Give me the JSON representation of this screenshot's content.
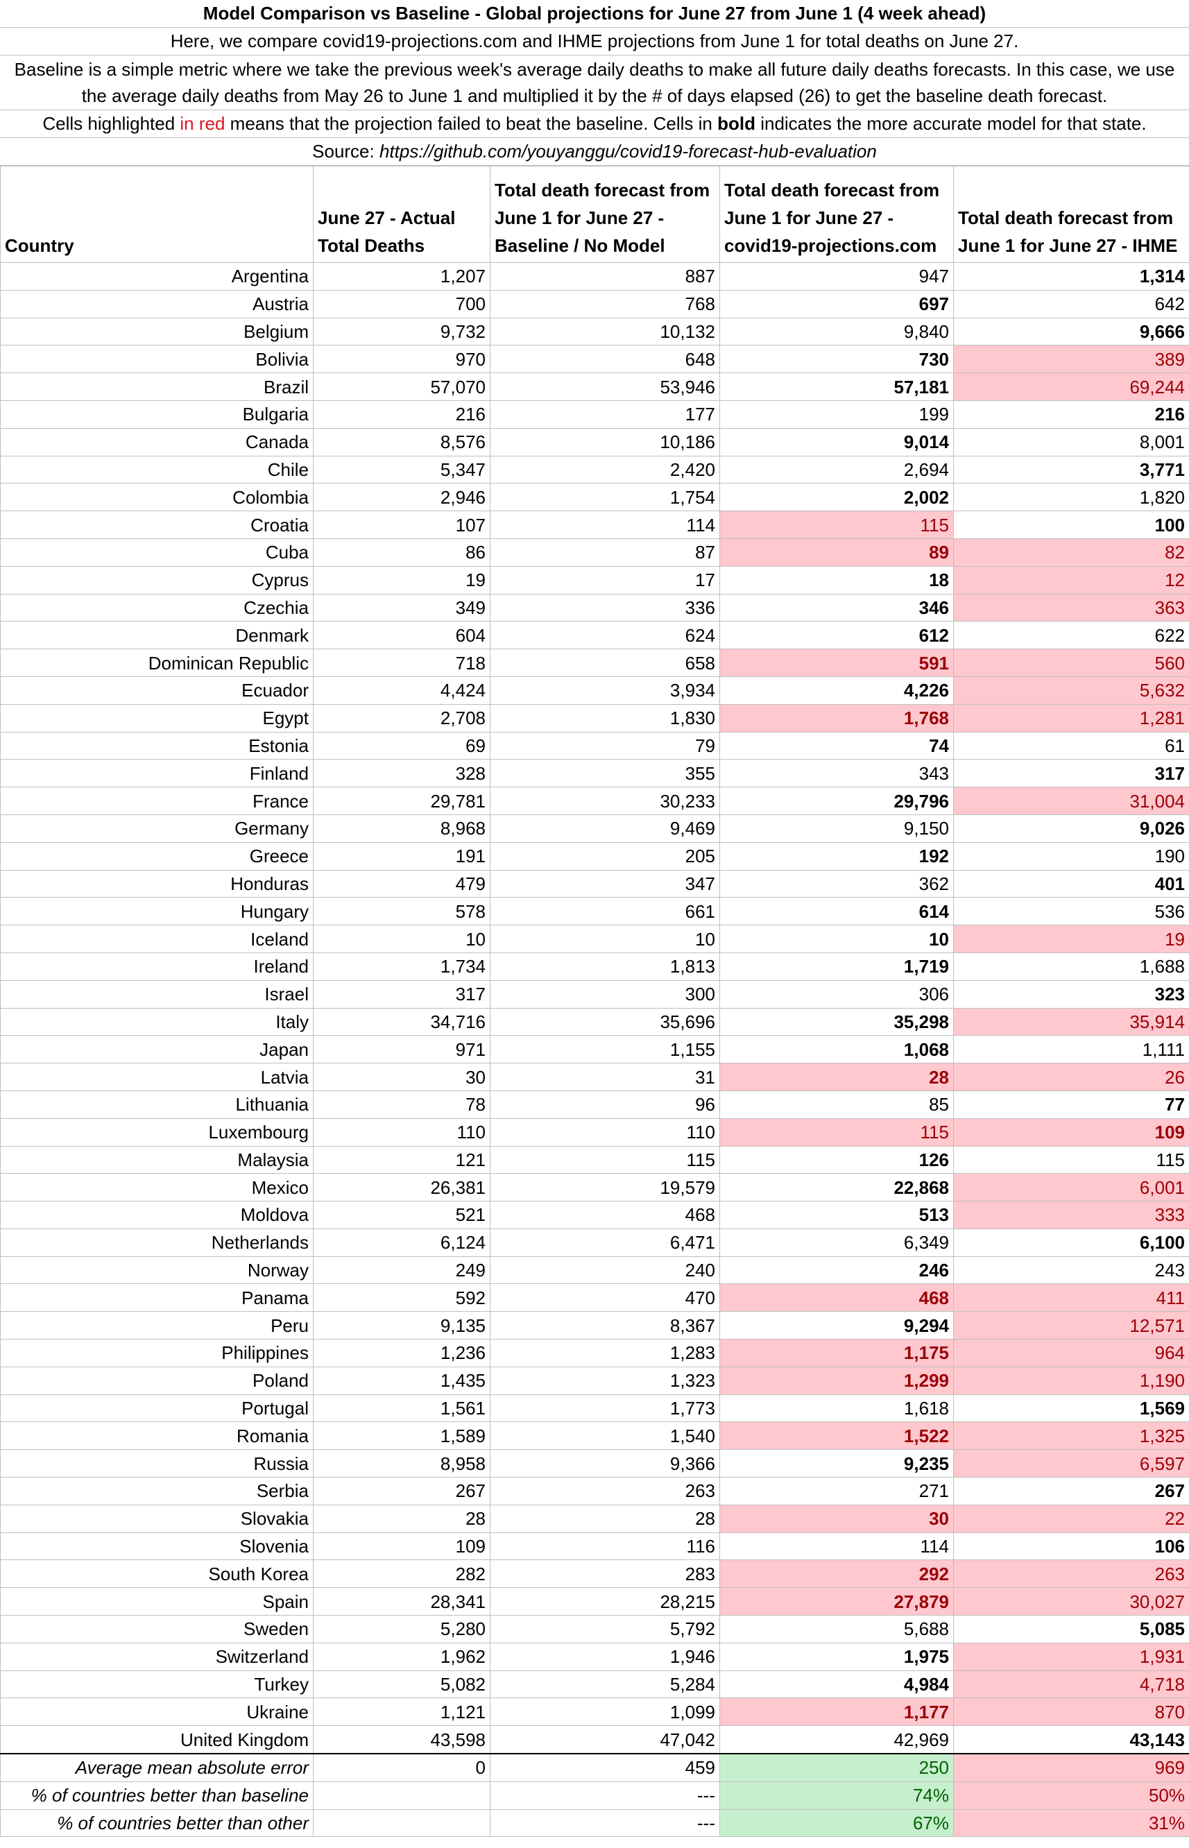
{
  "header": {
    "title": "Model Comparison vs Baseline - Global projections for June 27 from June 1 (4 week ahead)",
    "intro": "Here, we compare covid19-projections.com and IHME projections from June 1 for total deaths on June 27.",
    "baseline_desc": "Baseline is a simple metric where we take the previous week's average daily deaths to make all future daily deaths forecasts. In this case, we use the average daily deaths from May 26 to June 1 and multiplied it by the # of days elapsed (26) to get the baseline death forecast.",
    "legend_pre": "Cells highlighted ",
    "legend_red": "in red",
    "legend_mid": " means that the projection failed to beat the baseline. Cells in ",
    "legend_bold": "bold",
    "legend_post": " indicates the more accurate model for that state.",
    "source_label": "Source: ",
    "source_url": "https://github.com/youyanggu/covid19-forecast-hub-evaluation"
  },
  "columns": [
    "Country",
    "June 27 - Actual Total Deaths",
    "Total death forecast from June 1 for June 27 - Baseline / No Model",
    "Total death forecast from June 1 for June 27 - covid19-projections.com",
    "Total death forecast from June 1 for June 27 - IHME"
  ],
  "colors": {
    "bad_bg": "#ffc7ce",
    "bad_text": "#9c0006",
    "good_bg": "#c6efce",
    "good_text": "#006100"
  },
  "rows": [
    {
      "country": "Argentina",
      "actual": "1,207",
      "baseline": "887",
      "c19": "947",
      "ihme": "1,314",
      "c19_bold": false,
      "c19_red": false,
      "ihme_bold": true,
      "ihme_red": false
    },
    {
      "country": "Austria",
      "actual": "700",
      "baseline": "768",
      "c19": "697",
      "ihme": "642",
      "c19_bold": true,
      "c19_red": false,
      "ihme_bold": false,
      "ihme_red": false
    },
    {
      "country": "Belgium",
      "actual": "9,732",
      "baseline": "10,132",
      "c19": "9,840",
      "ihme": "9,666",
      "c19_bold": false,
      "c19_red": false,
      "ihme_bold": true,
      "ihme_red": false
    },
    {
      "country": "Bolivia",
      "actual": "970",
      "baseline": "648",
      "c19": "730",
      "ihme": "389",
      "c19_bold": true,
      "c19_red": false,
      "ihme_bold": false,
      "ihme_red": true
    },
    {
      "country": "Brazil",
      "actual": "57,070",
      "baseline": "53,946",
      "c19": "57,181",
      "ihme": "69,244",
      "c19_bold": true,
      "c19_red": false,
      "ihme_bold": false,
      "ihme_red": true
    },
    {
      "country": "Bulgaria",
      "actual": "216",
      "baseline": "177",
      "c19": "199",
      "ihme": "216",
      "c19_bold": false,
      "c19_red": false,
      "ihme_bold": true,
      "ihme_red": false
    },
    {
      "country": "Canada",
      "actual": "8,576",
      "baseline": "10,186",
      "c19": "9,014",
      "ihme": "8,001",
      "c19_bold": true,
      "c19_red": false,
      "ihme_bold": false,
      "ihme_red": false
    },
    {
      "country": "Chile",
      "actual": "5,347",
      "baseline": "2,420",
      "c19": "2,694",
      "ihme": "3,771",
      "c19_bold": false,
      "c19_red": false,
      "ihme_bold": true,
      "ihme_red": false
    },
    {
      "country": "Colombia",
      "actual": "2,946",
      "baseline": "1,754",
      "c19": "2,002",
      "ihme": "1,820",
      "c19_bold": true,
      "c19_red": false,
      "ihme_bold": false,
      "ihme_red": false
    },
    {
      "country": "Croatia",
      "actual": "107",
      "baseline": "114",
      "c19": "115",
      "ihme": "100",
      "c19_bold": false,
      "c19_red": true,
      "ihme_bold": true,
      "ihme_red": false
    },
    {
      "country": "Cuba",
      "actual": "86",
      "baseline": "87",
      "c19": "89",
      "ihme": "82",
      "c19_bold": true,
      "c19_red": true,
      "ihme_bold": false,
      "ihme_red": true
    },
    {
      "country": "Cyprus",
      "actual": "19",
      "baseline": "17",
      "c19": "18",
      "ihme": "12",
      "c19_bold": true,
      "c19_red": false,
      "ihme_bold": false,
      "ihme_red": true
    },
    {
      "country": "Czechia",
      "actual": "349",
      "baseline": "336",
      "c19": "346",
      "ihme": "363",
      "c19_bold": true,
      "c19_red": false,
      "ihme_bold": false,
      "ihme_red": true
    },
    {
      "country": "Denmark",
      "actual": "604",
      "baseline": "624",
      "c19": "612",
      "ihme": "622",
      "c19_bold": true,
      "c19_red": false,
      "ihme_bold": false,
      "ihme_red": false
    },
    {
      "country": "Dominican Republic",
      "actual": "718",
      "baseline": "658",
      "c19": "591",
      "ihme": "560",
      "c19_bold": true,
      "c19_red": true,
      "ihme_bold": false,
      "ihme_red": true
    },
    {
      "country": "Ecuador",
      "actual": "4,424",
      "baseline": "3,934",
      "c19": "4,226",
      "ihme": "5,632",
      "c19_bold": true,
      "c19_red": false,
      "ihme_bold": false,
      "ihme_red": true
    },
    {
      "country": "Egypt",
      "actual": "2,708",
      "baseline": "1,830",
      "c19": "1,768",
      "ihme": "1,281",
      "c19_bold": true,
      "c19_red": true,
      "ihme_bold": false,
      "ihme_red": true
    },
    {
      "country": "Estonia",
      "actual": "69",
      "baseline": "79",
      "c19": "74",
      "ihme": "61",
      "c19_bold": true,
      "c19_red": false,
      "ihme_bold": false,
      "ihme_red": false
    },
    {
      "country": "Finland",
      "actual": "328",
      "baseline": "355",
      "c19": "343",
      "ihme": "317",
      "c19_bold": false,
      "c19_red": false,
      "ihme_bold": true,
      "ihme_red": false
    },
    {
      "country": "France",
      "actual": "29,781",
      "baseline": "30,233",
      "c19": "29,796",
      "ihme": "31,004",
      "c19_bold": true,
      "c19_red": false,
      "ihme_bold": false,
      "ihme_red": true
    },
    {
      "country": "Germany",
      "actual": "8,968",
      "baseline": "9,469",
      "c19": "9,150",
      "ihme": "9,026",
      "c19_bold": false,
      "c19_red": false,
      "ihme_bold": true,
      "ihme_red": false
    },
    {
      "country": "Greece",
      "actual": "191",
      "baseline": "205",
      "c19": "192",
      "ihme": "190",
      "c19_bold": true,
      "c19_red": false,
      "ihme_bold": false,
      "ihme_red": false
    },
    {
      "country": "Honduras",
      "actual": "479",
      "baseline": "347",
      "c19": "362",
      "ihme": "401",
      "c19_bold": false,
      "c19_red": false,
      "ihme_bold": true,
      "ihme_red": false
    },
    {
      "country": "Hungary",
      "actual": "578",
      "baseline": "661",
      "c19": "614",
      "ihme": "536",
      "c19_bold": true,
      "c19_red": false,
      "ihme_bold": false,
      "ihme_red": false
    },
    {
      "country": "Iceland",
      "actual": "10",
      "baseline": "10",
      "c19": "10",
      "ihme": "19",
      "c19_bold": true,
      "c19_red": false,
      "ihme_bold": false,
      "ihme_red": true
    },
    {
      "country": "Ireland",
      "actual": "1,734",
      "baseline": "1,813",
      "c19": "1,719",
      "ihme": "1,688",
      "c19_bold": true,
      "c19_red": false,
      "ihme_bold": false,
      "ihme_red": false
    },
    {
      "country": "Israel",
      "actual": "317",
      "baseline": "300",
      "c19": "306",
      "ihme": "323",
      "c19_bold": false,
      "c19_red": false,
      "ihme_bold": true,
      "ihme_red": false
    },
    {
      "country": "Italy",
      "actual": "34,716",
      "baseline": "35,696",
      "c19": "35,298",
      "ihme": "35,914",
      "c19_bold": true,
      "c19_red": false,
      "ihme_bold": false,
      "ihme_red": true
    },
    {
      "country": "Japan",
      "actual": "971",
      "baseline": "1,155",
      "c19": "1,068",
      "ihme": "1,111",
      "c19_bold": true,
      "c19_red": false,
      "ihme_bold": false,
      "ihme_red": false
    },
    {
      "country": "Latvia",
      "actual": "30",
      "baseline": "31",
      "c19": "28",
      "ihme": "26",
      "c19_bold": true,
      "c19_red": true,
      "ihme_bold": false,
      "ihme_red": true
    },
    {
      "country": "Lithuania",
      "actual": "78",
      "baseline": "96",
      "c19": "85",
      "ihme": "77",
      "c19_bold": false,
      "c19_red": false,
      "ihme_bold": true,
      "ihme_red": false
    },
    {
      "country": "Luxembourg",
      "actual": "110",
      "baseline": "110",
      "c19": "115",
      "ihme": "109",
      "c19_bold": false,
      "c19_red": true,
      "ihme_bold": true,
      "ihme_red": true
    },
    {
      "country": "Malaysia",
      "actual": "121",
      "baseline": "115",
      "c19": "126",
      "ihme": "115",
      "c19_bold": true,
      "c19_red": false,
      "ihme_bold": false,
      "ihme_red": false
    },
    {
      "country": "Mexico",
      "actual": "26,381",
      "baseline": "19,579",
      "c19": "22,868",
      "ihme": "6,001",
      "c19_bold": true,
      "c19_red": false,
      "ihme_bold": false,
      "ihme_red": true
    },
    {
      "country": "Moldova",
      "actual": "521",
      "baseline": "468",
      "c19": "513",
      "ihme": "333",
      "c19_bold": true,
      "c19_red": false,
      "ihme_bold": false,
      "ihme_red": true
    },
    {
      "country": "Netherlands",
      "actual": "6,124",
      "baseline": "6,471",
      "c19": "6,349",
      "ihme": "6,100",
      "c19_bold": false,
      "c19_red": false,
      "ihme_bold": true,
      "ihme_red": false
    },
    {
      "country": "Norway",
      "actual": "249",
      "baseline": "240",
      "c19": "246",
      "ihme": "243",
      "c19_bold": true,
      "c19_red": false,
      "ihme_bold": false,
      "ihme_red": false
    },
    {
      "country": "Panama",
      "actual": "592",
      "baseline": "470",
      "c19": "468",
      "ihme": "411",
      "c19_bold": true,
      "c19_red": true,
      "ihme_bold": false,
      "ihme_red": true
    },
    {
      "country": "Peru",
      "actual": "9,135",
      "baseline": "8,367",
      "c19": "9,294",
      "ihme": "12,571",
      "c19_bold": true,
      "c19_red": false,
      "ihme_bold": false,
      "ihme_red": true
    },
    {
      "country": "Philippines",
      "actual": "1,236",
      "baseline": "1,283",
      "c19": "1,175",
      "ihme": "964",
      "c19_bold": true,
      "c19_red": true,
      "ihme_bold": false,
      "ihme_red": true
    },
    {
      "country": "Poland",
      "actual": "1,435",
      "baseline": "1,323",
      "c19": "1,299",
      "ihme": "1,190",
      "c19_bold": true,
      "c19_red": true,
      "ihme_bold": false,
      "ihme_red": true
    },
    {
      "country": "Portugal",
      "actual": "1,561",
      "baseline": "1,773",
      "c19": "1,618",
      "ihme": "1,569",
      "c19_bold": false,
      "c19_red": false,
      "ihme_bold": true,
      "ihme_red": false
    },
    {
      "country": "Romania",
      "actual": "1,589",
      "baseline": "1,540",
      "c19": "1,522",
      "ihme": "1,325",
      "c19_bold": true,
      "c19_red": true,
      "ihme_bold": false,
      "ihme_red": true
    },
    {
      "country": "Russia",
      "actual": "8,958",
      "baseline": "9,366",
      "c19": "9,235",
      "ihme": "6,597",
      "c19_bold": true,
      "c19_red": false,
      "ihme_bold": false,
      "ihme_red": true
    },
    {
      "country": "Serbia",
      "actual": "267",
      "baseline": "263",
      "c19": "271",
      "ihme": "267",
      "c19_bold": false,
      "c19_red": false,
      "ihme_bold": true,
      "ihme_red": false
    },
    {
      "country": "Slovakia",
      "actual": "28",
      "baseline": "28",
      "c19": "30",
      "ihme": "22",
      "c19_bold": true,
      "c19_red": true,
      "ihme_bold": false,
      "ihme_red": true
    },
    {
      "country": "Slovenia",
      "actual": "109",
      "baseline": "116",
      "c19": "114",
      "ihme": "106",
      "c19_bold": false,
      "c19_red": false,
      "ihme_bold": true,
      "ihme_red": false
    },
    {
      "country": "South Korea",
      "actual": "282",
      "baseline": "283",
      "c19": "292",
      "ihme": "263",
      "c19_bold": true,
      "c19_red": true,
      "ihme_bold": false,
      "ihme_red": true
    },
    {
      "country": "Spain",
      "actual": "28,341",
      "baseline": "28,215",
      "c19": "27,879",
      "ihme": "30,027",
      "c19_bold": true,
      "c19_red": true,
      "ihme_bold": false,
      "ihme_red": true
    },
    {
      "country": "Sweden",
      "actual": "5,280",
      "baseline": "5,792",
      "c19": "5,688",
      "ihme": "5,085",
      "c19_bold": false,
      "c19_red": false,
      "ihme_bold": true,
      "ihme_red": false
    },
    {
      "country": "Switzerland",
      "actual": "1,962",
      "baseline": "1,946",
      "c19": "1,975",
      "ihme": "1,931",
      "c19_bold": true,
      "c19_red": false,
      "ihme_bold": false,
      "ihme_red": true
    },
    {
      "country": "Turkey",
      "actual": "5,082",
      "baseline": "5,284",
      "c19": "4,984",
      "ihme": "4,718",
      "c19_bold": true,
      "c19_red": false,
      "ihme_bold": false,
      "ihme_red": true
    },
    {
      "country": "Ukraine",
      "actual": "1,121",
      "baseline": "1,099",
      "c19": "1,177",
      "ihme": "870",
      "c19_bold": true,
      "c19_red": true,
      "ihme_bold": false,
      "ihme_red": true
    },
    {
      "country": "United Kingdom",
      "actual": "43,598",
      "baseline": "47,042",
      "c19": "42,969",
      "ihme": "43,143",
      "c19_bold": false,
      "c19_red": false,
      "ihme_bold": true,
      "ihme_red": false
    }
  ],
  "summary": [
    {
      "label": "Average mean absolute error",
      "actual": "0",
      "baseline": "459",
      "c19": "250",
      "ihme": "969"
    },
    {
      "label": "% of countries better than baseline",
      "actual": "",
      "baseline": "---",
      "c19": "74%",
      "ihme": "50%"
    },
    {
      "label": "% of countries better than other",
      "actual": "",
      "baseline": "---",
      "c19": "67%",
      "ihme": "31%"
    }
  ]
}
